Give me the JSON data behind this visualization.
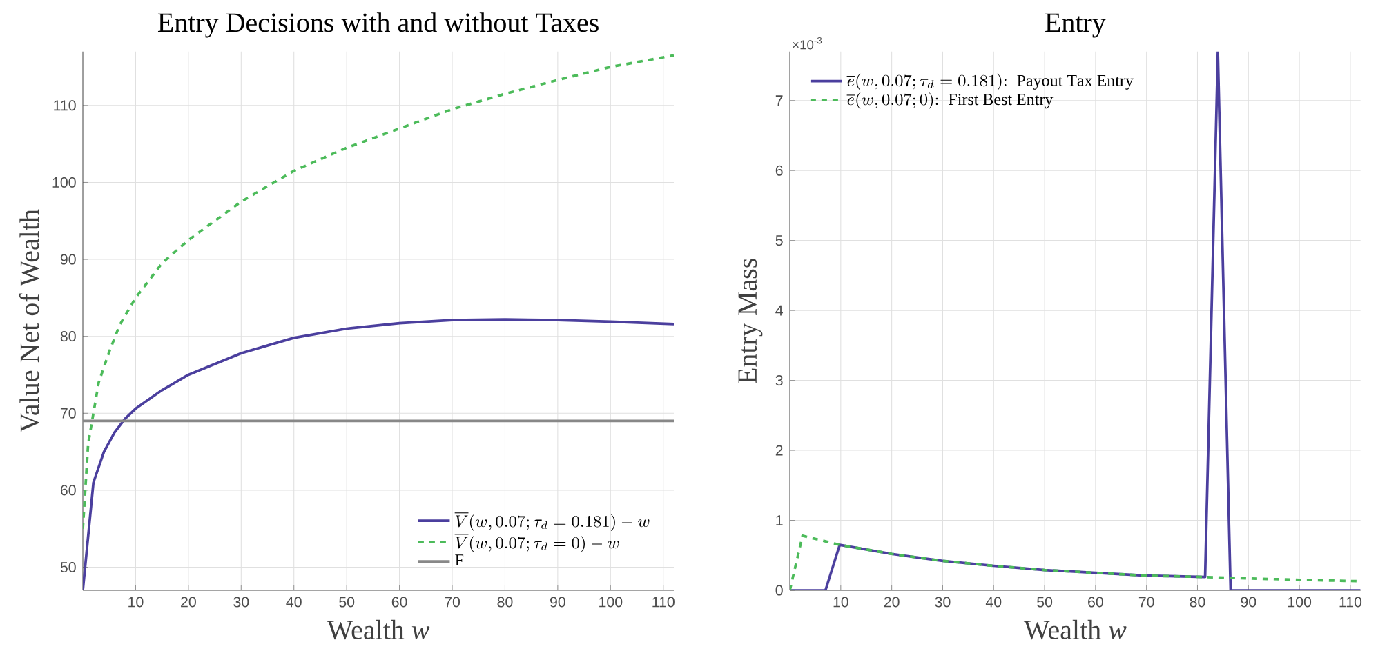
{
  "chart_data": [
    {
      "type": "line",
      "title": "Entry Decisions with and without Taxes",
      "xlabel": "Wealth *w*",
      "ylabel": "Value Net of Wealth",
      "xlim": [
        0,
        112
      ],
      "ylim": [
        47,
        117
      ],
      "xticks": [
        10,
        20,
        30,
        40,
        50,
        60,
        70,
        80,
        90,
        100,
        110
      ],
      "yticks": [
        50,
        60,
        70,
        80,
        90,
        100,
        110
      ],
      "grid": true,
      "legend": "bottom right",
      "series": [
        {
          "name": "\\overline{V}(w,0.07;\\tau_d=0.181)-w",
          "color": "#4b3f9e",
          "line_style": "solid",
          "x": [
            0,
            2,
            4,
            6,
            8,
            10,
            15,
            20,
            30,
            40,
            50,
            60,
            70,
            80,
            90,
            100,
            112
          ],
          "values": [
            47,
            61,
            65,
            67.5,
            69.3,
            70.6,
            73,
            75,
            77.8,
            79.8,
            81,
            81.7,
            82.1,
            82.2,
            82.1,
            81.9,
            81.6
          ]
        },
        {
          "name": "\\overline{V}(w,0.07;\\tau_d=0)-w",
          "color": "#4cbb5a",
          "line_style": "dashed",
          "x": [
            0,
            1,
            2,
            3,
            5,
            7,
            10,
            15,
            20,
            30,
            40,
            50,
            60,
            70,
            80,
            90,
            100,
            112
          ],
          "values": [
            55,
            66,
            70,
            74,
            78,
            81.5,
            85,
            89.5,
            92.5,
            97.5,
            101.5,
            104.5,
            107,
            109.5,
            111.5,
            113.3,
            115,
            116.5
          ]
        },
        {
          "name": "\\mathrm{F}",
          "color": "#888888",
          "line_style": "solid",
          "x": [
            0,
            112
          ],
          "values": [
            69,
            69
          ]
        }
      ]
    },
    {
      "type": "line",
      "title": "Entry",
      "xlabel": "Wealth *w*",
      "ylabel": "Entry Mass",
      "annotations": [
        "×10$^{-3}$"
      ],
      "xlim": [
        0,
        112
      ],
      "ylim": [
        0,
        7.7
      ],
      "xticks": [
        10,
        20,
        30,
        40,
        50,
        60,
        70,
        80,
        90,
        100,
        110
      ],
      "yticks": [
        0,
        1,
        2,
        3,
        4,
        5,
        6,
        7
      ],
      "grid": true,
      "legend": "top left",
      "series": [
        {
          "name": "\\overline{e}(w,0.07;\\tau_d=0.181)\\mathrm{:\\ Payout\\ Tax\\ Entry}",
          "color": "#4b3f9e",
          "line_style": "solid",
          "x": [
            0,
            7,
            9.8,
            20,
            30,
            40,
            50,
            60,
            70,
            81.5,
            84,
            86.5,
            112
          ],
          "values": [
            0,
            0,
            0.65,
            0.52,
            0.42,
            0.35,
            0.29,
            0.25,
            0.21,
            0.19,
            7.7,
            0,
            0
          ]
        },
        {
          "name": "\\overline{e}(w,0.07;0)\\mathrm{:\\ First\\ Best\\ Entry}",
          "color": "#4cbb5a",
          "line_style": "dashed",
          "x": [
            0,
            2.5,
            9.8,
            20,
            30,
            40,
            50,
            60,
            70,
            81.5,
            90,
            100,
            112
          ],
          "values": [
            0,
            0.78,
            0.65,
            0.52,
            0.42,
            0.35,
            0.29,
            0.25,
            0.21,
            0.19,
            0.17,
            0.15,
            0.13
          ]
        }
      ]
    }
  ]
}
